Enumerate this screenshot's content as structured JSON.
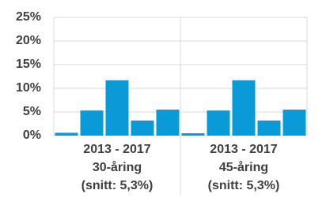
{
  "chart_data": {
    "type": "bar",
    "groups": [
      {
        "label_lines": [
          "2013 - 2017",
          "30-åring",
          "(snitt: 5,3%)"
        ],
        "values": [
          0.6,
          5.3,
          11.7,
          3.2,
          5.5
        ]
      },
      {
        "label_lines": [
          "2013 - 2017",
          "45-åring",
          "(snitt: 5,3%)"
        ],
        "values": [
          0.5,
          5.3,
          11.7,
          3.2,
          5.5
        ]
      }
    ],
    "color": "#0a9ad7",
    "ylim": [
      0,
      25
    ],
    "yticks": [
      {
        "value": 0,
        "label": "0%"
      },
      {
        "value": 5,
        "label": "5%"
      },
      {
        "value": 10,
        "label": "10%"
      },
      {
        "value": 15,
        "label": "15%"
      },
      {
        "value": 20,
        "label": "20%"
      },
      {
        "value": 25,
        "label": "25%"
      }
    ],
    "grid": true
  }
}
